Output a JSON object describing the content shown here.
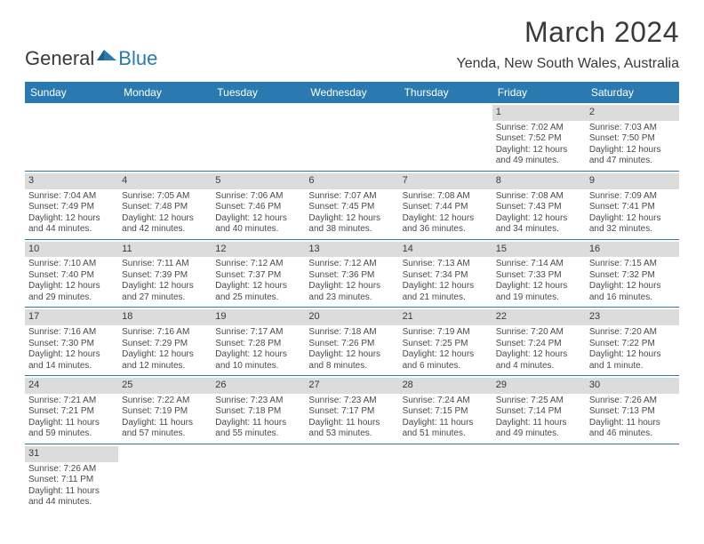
{
  "logo": {
    "text1": "General",
    "text2": "Blue",
    "brand_color": "#2a7ab0"
  },
  "title": "March 2024",
  "location": "Yenda, New South Wales, Australia",
  "header_bg": "#2a7ab0",
  "daynum_bg": "#dcdcdc",
  "border_color": "#2a7ab0",
  "day_headers": [
    "Sunday",
    "Monday",
    "Tuesday",
    "Wednesday",
    "Thursday",
    "Friday",
    "Saturday"
  ],
  "weeks": [
    [
      {
        "blank": true
      },
      {
        "blank": true
      },
      {
        "blank": true
      },
      {
        "blank": true
      },
      {
        "blank": true
      },
      {
        "num": "1",
        "sunrise": "Sunrise: 7:02 AM",
        "sunset": "Sunset: 7:52 PM",
        "daylight": "Daylight: 12 hours and 49 minutes."
      },
      {
        "num": "2",
        "sunrise": "Sunrise: 7:03 AM",
        "sunset": "Sunset: 7:50 PM",
        "daylight": "Daylight: 12 hours and 47 minutes."
      }
    ],
    [
      {
        "num": "3",
        "sunrise": "Sunrise: 7:04 AM",
        "sunset": "Sunset: 7:49 PM",
        "daylight": "Daylight: 12 hours and 44 minutes."
      },
      {
        "num": "4",
        "sunrise": "Sunrise: 7:05 AM",
        "sunset": "Sunset: 7:48 PM",
        "daylight": "Daylight: 12 hours and 42 minutes."
      },
      {
        "num": "5",
        "sunrise": "Sunrise: 7:06 AM",
        "sunset": "Sunset: 7:46 PM",
        "daylight": "Daylight: 12 hours and 40 minutes."
      },
      {
        "num": "6",
        "sunrise": "Sunrise: 7:07 AM",
        "sunset": "Sunset: 7:45 PM",
        "daylight": "Daylight: 12 hours and 38 minutes."
      },
      {
        "num": "7",
        "sunrise": "Sunrise: 7:08 AM",
        "sunset": "Sunset: 7:44 PM",
        "daylight": "Daylight: 12 hours and 36 minutes."
      },
      {
        "num": "8",
        "sunrise": "Sunrise: 7:08 AM",
        "sunset": "Sunset: 7:43 PM",
        "daylight": "Daylight: 12 hours and 34 minutes."
      },
      {
        "num": "9",
        "sunrise": "Sunrise: 7:09 AM",
        "sunset": "Sunset: 7:41 PM",
        "daylight": "Daylight: 12 hours and 32 minutes."
      }
    ],
    [
      {
        "num": "10",
        "sunrise": "Sunrise: 7:10 AM",
        "sunset": "Sunset: 7:40 PM",
        "daylight": "Daylight: 12 hours and 29 minutes."
      },
      {
        "num": "11",
        "sunrise": "Sunrise: 7:11 AM",
        "sunset": "Sunset: 7:39 PM",
        "daylight": "Daylight: 12 hours and 27 minutes."
      },
      {
        "num": "12",
        "sunrise": "Sunrise: 7:12 AM",
        "sunset": "Sunset: 7:37 PM",
        "daylight": "Daylight: 12 hours and 25 minutes."
      },
      {
        "num": "13",
        "sunrise": "Sunrise: 7:12 AM",
        "sunset": "Sunset: 7:36 PM",
        "daylight": "Daylight: 12 hours and 23 minutes."
      },
      {
        "num": "14",
        "sunrise": "Sunrise: 7:13 AM",
        "sunset": "Sunset: 7:34 PM",
        "daylight": "Daylight: 12 hours and 21 minutes."
      },
      {
        "num": "15",
        "sunrise": "Sunrise: 7:14 AM",
        "sunset": "Sunset: 7:33 PM",
        "daylight": "Daylight: 12 hours and 19 minutes."
      },
      {
        "num": "16",
        "sunrise": "Sunrise: 7:15 AM",
        "sunset": "Sunset: 7:32 PM",
        "daylight": "Daylight: 12 hours and 16 minutes."
      }
    ],
    [
      {
        "num": "17",
        "sunrise": "Sunrise: 7:16 AM",
        "sunset": "Sunset: 7:30 PM",
        "daylight": "Daylight: 12 hours and 14 minutes."
      },
      {
        "num": "18",
        "sunrise": "Sunrise: 7:16 AM",
        "sunset": "Sunset: 7:29 PM",
        "daylight": "Daylight: 12 hours and 12 minutes."
      },
      {
        "num": "19",
        "sunrise": "Sunrise: 7:17 AM",
        "sunset": "Sunset: 7:28 PM",
        "daylight": "Daylight: 12 hours and 10 minutes."
      },
      {
        "num": "20",
        "sunrise": "Sunrise: 7:18 AM",
        "sunset": "Sunset: 7:26 PM",
        "daylight": "Daylight: 12 hours and 8 minutes."
      },
      {
        "num": "21",
        "sunrise": "Sunrise: 7:19 AM",
        "sunset": "Sunset: 7:25 PM",
        "daylight": "Daylight: 12 hours and 6 minutes."
      },
      {
        "num": "22",
        "sunrise": "Sunrise: 7:20 AM",
        "sunset": "Sunset: 7:24 PM",
        "daylight": "Daylight: 12 hours and 4 minutes."
      },
      {
        "num": "23",
        "sunrise": "Sunrise: 7:20 AM",
        "sunset": "Sunset: 7:22 PM",
        "daylight": "Daylight: 12 hours and 1 minute."
      }
    ],
    [
      {
        "num": "24",
        "sunrise": "Sunrise: 7:21 AM",
        "sunset": "Sunset: 7:21 PM",
        "daylight": "Daylight: 11 hours and 59 minutes."
      },
      {
        "num": "25",
        "sunrise": "Sunrise: 7:22 AM",
        "sunset": "Sunset: 7:19 PM",
        "daylight": "Daylight: 11 hours and 57 minutes."
      },
      {
        "num": "26",
        "sunrise": "Sunrise: 7:23 AM",
        "sunset": "Sunset: 7:18 PM",
        "daylight": "Daylight: 11 hours and 55 minutes."
      },
      {
        "num": "27",
        "sunrise": "Sunrise: 7:23 AM",
        "sunset": "Sunset: 7:17 PM",
        "daylight": "Daylight: 11 hours and 53 minutes."
      },
      {
        "num": "28",
        "sunrise": "Sunrise: 7:24 AM",
        "sunset": "Sunset: 7:15 PM",
        "daylight": "Daylight: 11 hours and 51 minutes."
      },
      {
        "num": "29",
        "sunrise": "Sunrise: 7:25 AM",
        "sunset": "Sunset: 7:14 PM",
        "daylight": "Daylight: 11 hours and 49 minutes."
      },
      {
        "num": "30",
        "sunrise": "Sunrise: 7:26 AM",
        "sunset": "Sunset: 7:13 PM",
        "daylight": "Daylight: 11 hours and 46 minutes."
      }
    ],
    [
      {
        "num": "31",
        "sunrise": "Sunrise: 7:26 AM",
        "sunset": "Sunset: 7:11 PM",
        "daylight": "Daylight: 11 hours and 44 minutes."
      },
      {
        "blank": true
      },
      {
        "blank": true
      },
      {
        "blank": true
      },
      {
        "blank": true
      },
      {
        "blank": true
      },
      {
        "blank": true
      }
    ]
  ]
}
